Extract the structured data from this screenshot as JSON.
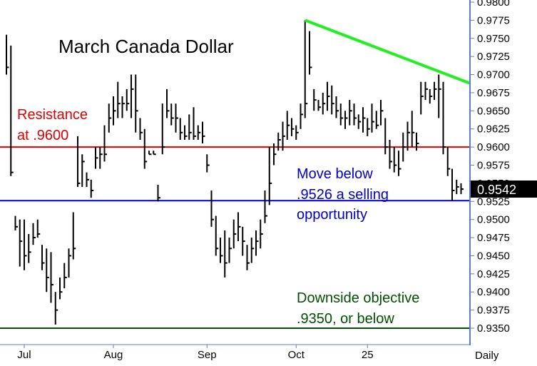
{
  "chart_data": {
    "type": "ohlc",
    "title": "March Canada Dollar",
    "frequency_label": "Daily",
    "ylim": [
      0.9335,
      0.98
    ],
    "y_ticks": [
      "0.9800",
      "0.9775",
      "0.9750",
      "0.9725",
      "0.9700",
      "0.9675",
      "0.9650",
      "0.9625",
      "0.9600",
      "0.9575",
      "0.9550",
      "0.9525",
      "0.9500",
      "0.9475",
      "0.9450",
      "0.9425",
      "0.9400",
      "0.9375",
      "0.9350"
    ],
    "x_labels": [
      {
        "label": "Jul",
        "bar": 4
      },
      {
        "label": "Aug",
        "bar": 24
      },
      {
        "label": "Sep",
        "bar": 45
      },
      {
        "label": "Oct",
        "bar": 65
      },
      {
        "label": "25",
        "bar": 81
      }
    ],
    "last_price": {
      "label": "0.9542",
      "value": 0.9542,
      "color": "#000000"
    },
    "bars": [
      [
        0.9755,
        0.9745,
        0.97,
        0.971
      ],
      [
        0.974,
        0.965,
        0.956,
        0.9565
      ],
      [
        0.9505,
        0.949,
        0.9485,
        0.949
      ],
      [
        0.95,
        0.9475,
        0.9435,
        0.947
      ],
      [
        0.95,
        0.949,
        0.943,
        0.945
      ],
      [
        0.948,
        0.947,
        0.944,
        0.9455
      ],
      [
        0.9495,
        0.948,
        0.9465,
        0.9475
      ],
      [
        0.95,
        0.9495,
        0.9475,
        0.948
      ],
      [
        0.9465,
        0.946,
        0.943,
        0.944
      ],
      [
        0.946,
        0.945,
        0.94,
        0.942
      ],
      [
        0.9455,
        0.9445,
        0.9385,
        0.941
      ],
      [
        0.94,
        0.939,
        0.9355,
        0.9375
      ],
      [
        0.942,
        0.941,
        0.939,
        0.94
      ],
      [
        0.944,
        0.943,
        0.9405,
        0.942
      ],
      [
        0.946,
        0.9445,
        0.942,
        0.945
      ],
      [
        0.951,
        0.95,
        0.9445,
        0.946
      ],
      [
        0.9615,
        0.96,
        0.9545,
        0.955
      ],
      [
        0.959,
        0.958,
        0.9545,
        0.958
      ],
      [
        0.9565,
        0.956,
        0.9545,
        0.9555
      ],
      [
        0.9555,
        0.955,
        0.953,
        0.954
      ],
      [
        0.96,
        0.9595,
        0.957,
        0.9585
      ],
      [
        0.96,
        0.9595,
        0.957,
        0.959
      ],
      [
        0.963,
        0.962,
        0.958,
        0.959
      ],
      [
        0.966,
        0.9655,
        0.962,
        0.964
      ],
      [
        0.967,
        0.966,
        0.963,
        0.965
      ],
      [
        0.969,
        0.967,
        0.964,
        0.966
      ],
      [
        0.967,
        0.9665,
        0.964,
        0.966
      ],
      [
        0.968,
        0.967,
        0.965,
        0.966
      ],
      [
        0.97,
        0.969,
        0.964,
        0.968
      ],
      [
        0.97,
        0.9695,
        0.962,
        0.965
      ],
      [
        0.964,
        0.963,
        0.961,
        0.962
      ],
      [
        0.9625,
        0.9615,
        0.957,
        0.958
      ],
      [
        0.9595,
        0.959,
        0.959,
        0.959
      ],
      [
        0.9595,
        0.959,
        0.959,
        0.959
      ],
      [
        0.9548,
        0.9545,
        0.9525,
        0.953
      ],
      [
        0.966,
        0.965,
        0.959,
        0.96
      ],
      [
        0.968,
        0.967,
        0.964,
        0.965
      ],
      [
        0.966,
        0.9655,
        0.963,
        0.964
      ],
      [
        0.966,
        0.965,
        0.962,
        0.964
      ],
      [
        0.964,
        0.9635,
        0.961,
        0.962
      ],
      [
        0.963,
        0.9625,
        0.961,
        0.9615
      ],
      [
        0.9645,
        0.964,
        0.961,
        0.962
      ],
      [
        0.9655,
        0.965,
        0.961,
        0.9615
      ],
      [
        0.963,
        0.9625,
        0.961,
        0.962
      ],
      [
        0.9635,
        0.963,
        0.9605,
        0.9615
      ],
      [
        0.959,
        0.9585,
        0.9565,
        0.9575
      ],
      [
        0.954,
        0.953,
        0.949,
        0.95
      ],
      [
        0.9505,
        0.95,
        0.945,
        0.946
      ],
      [
        0.9475,
        0.947,
        0.944,
        0.945
      ],
      [
        0.9485,
        0.948,
        0.942,
        0.944
      ],
      [
        0.9475,
        0.947,
        0.944,
        0.946
      ],
      [
        0.95,
        0.949,
        0.946,
        0.948
      ],
      [
        0.951,
        0.95,
        0.947,
        0.949
      ],
      [
        0.949,
        0.948,
        0.945,
        0.947
      ],
      [
        0.9465,
        0.946,
        0.943,
        0.944
      ],
      [
        0.9475,
        0.947,
        0.944,
        0.946
      ],
      [
        0.9485,
        0.948,
        0.945,
        0.947
      ],
      [
        0.95,
        0.949,
        0.946,
        0.948
      ],
      [
        0.954,
        0.953,
        0.9495,
        0.9505
      ],
      [
        0.96,
        0.959,
        0.952,
        0.955
      ],
      [
        0.9605,
        0.96,
        0.9575,
        0.959
      ],
      [
        0.962,
        0.961,
        0.9595,
        0.961
      ],
      [
        0.9635,
        0.963,
        0.9595,
        0.9615
      ],
      [
        0.965,
        0.964,
        0.961,
        0.963
      ],
      [
        0.964,
        0.9635,
        0.9615,
        0.9625
      ],
      [
        0.963,
        0.9625,
        0.961,
        0.962
      ],
      [
        0.966,
        0.965,
        0.9625,
        0.9645
      ],
      [
        0.9775,
        0.977,
        0.964,
        0.966
      ],
      [
        0.976,
        0.9755,
        0.97,
        0.971
      ],
      [
        0.968,
        0.967,
        0.965,
        0.9665
      ],
      [
        0.9665,
        0.966,
        0.965,
        0.9655
      ],
      [
        0.9675,
        0.967,
        0.9645,
        0.966
      ],
      [
        0.969,
        0.968,
        0.965,
        0.967
      ],
      [
        0.9685,
        0.968,
        0.9645,
        0.966
      ],
      [
        0.967,
        0.966,
        0.964,
        0.965
      ],
      [
        0.966,
        0.965,
        0.963,
        0.964
      ],
      [
        0.965,
        0.9645,
        0.9625,
        0.964
      ],
      [
        0.9665,
        0.9655,
        0.963,
        0.965
      ],
      [
        0.966,
        0.965,
        0.963,
        0.964
      ],
      [
        0.9645,
        0.964,
        0.9625,
        0.9635
      ],
      [
        0.9655,
        0.965,
        0.962,
        0.964
      ],
      [
        0.964,
        0.9635,
        0.9615,
        0.9625
      ],
      [
        0.966,
        0.965,
        0.962,
        0.9635
      ],
      [
        0.965,
        0.964,
        0.9625,
        0.963
      ],
      [
        0.9665,
        0.9655,
        0.963,
        0.965
      ],
      [
        0.964,
        0.963,
        0.959,
        0.96
      ],
      [
        0.961,
        0.96,
        0.957,
        0.958
      ],
      [
        0.96,
        0.959,
        0.9565,
        0.9575
      ],
      [
        0.9595,
        0.959,
        0.956,
        0.957
      ],
      [
        0.962,
        0.961,
        0.958,
        0.96
      ],
      [
        0.9635,
        0.963,
        0.9595,
        0.962
      ],
      [
        0.965,
        0.964,
        0.96,
        0.962
      ],
      [
        0.962,
        0.9615,
        0.9595,
        0.9605
      ],
      [
        0.969,
        0.968,
        0.9645,
        0.967
      ],
      [
        0.969,
        0.9685,
        0.9665,
        0.968
      ],
      [
        0.968,
        0.9675,
        0.966,
        0.967
      ],
      [
        0.969,
        0.9685,
        0.9665,
        0.968
      ],
      [
        0.97,
        0.969,
        0.964,
        0.968
      ],
      [
        0.969,
        0.968,
        0.959,
        0.96
      ],
      [
        0.96,
        0.959,
        0.956,
        0.957
      ],
      [
        0.957,
        0.956,
        0.9526,
        0.954
      ],
      [
        0.9555,
        0.955,
        0.9535,
        0.9545
      ],
      [
        0.955,
        0.9545,
        0.9535,
        0.9542
      ]
    ],
    "reference_lines": [
      {
        "name": "resistance",
        "value": 0.96,
        "color": "#e00000"
      },
      {
        "name": "support",
        "value": 0.9526,
        "color": "#0000cc"
      },
      {
        "name": "objective",
        "value": 0.935,
        "color": "#005000"
      }
    ],
    "trendline": {
      "from": {
        "bar": 67,
        "value": 0.9775
      },
      "to": {
        "bar": 104,
        "value": 0.9688
      },
      "color": "#22ee22"
    },
    "annotations": [
      {
        "name": "resistance",
        "lines": [
          "Resistance",
          "at .9600"
        ],
        "color": "#e00000"
      },
      {
        "name": "move-below",
        "lines": [
          "Move below",
          ".9526 a selling",
          "opportunity"
        ],
        "color": "#0000cc"
      },
      {
        "name": "downside",
        "lines": [
          "Downside objective",
          ".9350, or below"
        ],
        "color": "#005000"
      }
    ]
  }
}
